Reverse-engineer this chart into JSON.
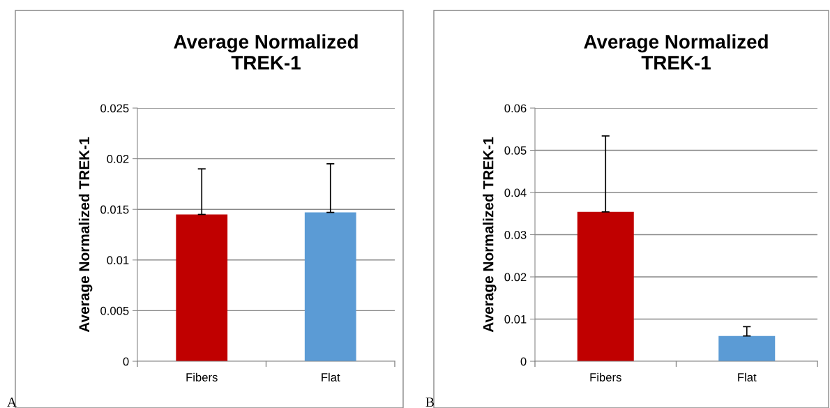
{
  "chart_data": [
    {
      "type": "bar",
      "title": "Average Normalized\nTREK-1",
      "ylabel": "Average Normalized TREK-1",
      "categories": [
        "Fibers",
        "Flat"
      ],
      "values": [
        0.0145,
        0.0147
      ],
      "colors": [
        "#c00000",
        "#5b9bd5"
      ],
      "errors": [
        [
          0.0145,
          0.019
        ],
        [
          0.0147,
          0.0195
        ]
      ],
      "ylim": [
        0,
        0.025
      ],
      "yticks": [
        0,
        0.005,
        0.01,
        0.015,
        0.02,
        0.025
      ],
      "grid": "y",
      "annotations": [
        "A"
      ]
    },
    {
      "type": "bar",
      "title": "Average Normalized\nTREK-1",
      "ylabel": "Average Normalized TREK-1",
      "categories": [
        "Fibers",
        "Flat"
      ],
      "values": [
        0.0354,
        0.006
      ],
      "colors": [
        "#c00000",
        "#5b9bd5"
      ],
      "errors": [
        [
          0.0354,
          0.0534
        ],
        [
          0.006,
          0.0082
        ]
      ],
      "ylim": [
        0,
        0.06
      ],
      "yticks": [
        0,
        0.01,
        0.02,
        0.03,
        0.04,
        0.05,
        0.06
      ],
      "grid": "y",
      "annotations": [
        "B"
      ]
    }
  ]
}
